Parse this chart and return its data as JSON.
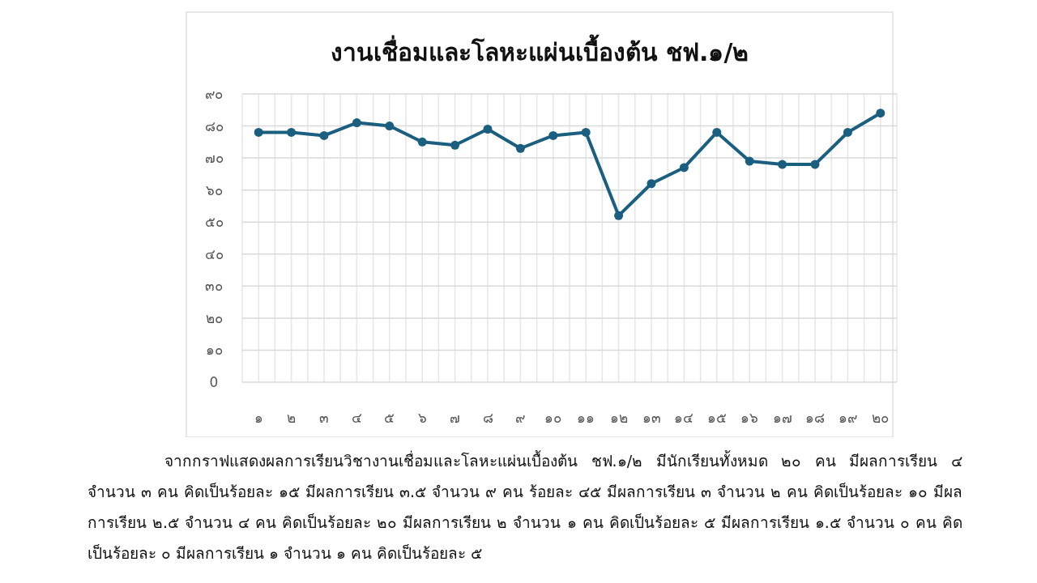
{
  "chart_data": {
    "type": "line",
    "title": "งานเชื่อมและโลหะแผ่นเบื้องต้น ชฟ.๑/๒",
    "categories": [
      "๑",
      "๒",
      "๓",
      "๔",
      "๕",
      "๖",
      "๗",
      "๘",
      "๙",
      "๑๐",
      "๑๑",
      "๑๒",
      "๑๓",
      "๑๔",
      "๑๕",
      "๑๖",
      "๑๗",
      "๑๘",
      "๑๙",
      "๒๐"
    ],
    "series": [
      {
        "color": "#1a5e80",
        "values": [
          78,
          78,
          77,
          81,
          80,
          75,
          74,
          79,
          73,
          77,
          78,
          52,
          62,
          67,
          78,
          69,
          68,
          68,
          78,
          84
        ]
      }
    ],
    "ylim": [
      0,
      90
    ],
    "yticks": [
      {
        "value": 0,
        "label": "0"
      },
      {
        "value": 10,
        "label": "๑๐"
      },
      {
        "value": 20,
        "label": "๒๐"
      },
      {
        "value": 30,
        "label": "๓๐"
      },
      {
        "value": 40,
        "label": "๔๐"
      },
      {
        "value": 50,
        "label": "๕๐"
      },
      {
        "value": 60,
        "label": "๖๐"
      },
      {
        "value": 70,
        "label": "๗๐"
      },
      {
        "value": 80,
        "label": "๘๐"
      },
      {
        "value": 90,
        "label": "๙๐"
      }
    ],
    "grid": true,
    "marker": "circle",
    "line_style": "solid",
    "annotations": [
      "จากกราฟแสดงผลการเรียนวิชางานเชื่อมและโลหะแผ่นเบื้องต้น ชฟ.๑/๒ มีนักเรียนทั้งหมด ๒๐ คน มีผลการเรียน ๔ จำนวน ๓ คน คิดเป็นร้อยละ ๑๕  มีผลการเรียน ๓.๕ จำนวน ๙ คน ร้อยละ ๔๕  มีผลการเรียน ๓ จำนวน ๒ คน คิดเป็นร้อยละ ๑๐  มีผลการเรียน ๒.๕ จำนวน ๔ คน คิดเป็นร้อยละ ๒๐ มีผลการเรียน ๒ จำนวน ๑ คน คิดเป็นร้อยละ ๕ มีผลการเรียน ๑.๕ จำนวน ๐ คน คิดเป็นร้อยละ ๐ มีผลการเรียน ๑ จำนวน ๑ คน คิดเป็นร้อยละ ๕"
    ]
  }
}
